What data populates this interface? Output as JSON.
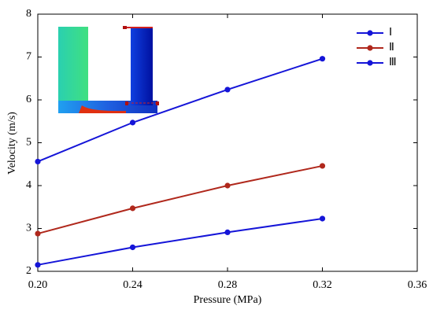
{
  "chart_data": {
    "type": "line",
    "x_label": "Pressure (MPa)",
    "y_label": "Velocity (m/s)",
    "x": [
      0.2,
      0.24,
      0.28,
      0.32
    ],
    "series": [
      {
        "name": "Ⅰ",
        "color": "#1515d8",
        "values": [
          4.56,
          5.47,
          6.24,
          6.96
        ]
      },
      {
        "name": "Ⅱ",
        "color": "#b0281c",
        "values": [
          2.88,
          3.47,
          4.0,
          4.46
        ]
      },
      {
        "name": "Ⅲ",
        "color": "#1515d8",
        "values": [
          2.15,
          2.56,
          2.91,
          3.23
        ]
      }
    ],
    "xlim": [
      0.2,
      0.36
    ],
    "xticks": [
      {
        "value": 0.2,
        "label": "0.20"
      },
      0.24,
      0.28,
      0.32,
      0.36
    ],
    "ylim": [
      2,
      8
    ],
    "yticks": [
      2,
      3,
      4,
      5,
      6,
      7,
      8
    ],
    "legend": "top-right"
  }
}
